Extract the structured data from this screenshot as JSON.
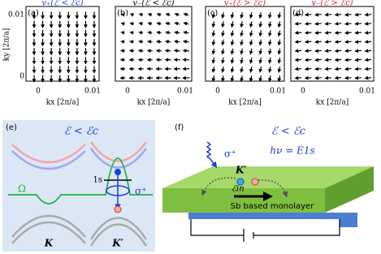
{
  "panels_top": [
    {
      "label": "(a)",
      "title": "v₊(ℰ < ℰc)",
      "xlabel": "kx [2π/a]",
      "xticks": [
        "0",
        "0.01"
      ]
    },
    {
      "label": "(b)",
      "title": "v₋(ℰ < ℰc)",
      "xlabel": "kx [2π/a]",
      "xticks": [
        "0",
        "0.01"
      ]
    },
    {
      "label": "(c)",
      "title": "v₊(ℰ > ℰc)",
      "xlabel": "kx [2π/a]",
      "xticks": [
        "0",
        "0.01"
      ]
    },
    {
      "label": "(d)",
      "title": "v₋(ℰ > ℰc)",
      "xlabel": "kx [2π/a]",
      "xticks": [
        "0",
        "0.01"
      ]
    }
  ],
  "ylabel": "ky [2π/a]",
  "yticks": [
    "0.01",
    "0"
  ],
  "panel_e": {
    "label": "(e)",
    "condition": "ℰ < ℰc",
    "state": "1s",
    "polarization": "σ⁺",
    "berry": "Ω",
    "valley_k": "K",
    "valley_kp": "K′"
  },
  "panel_f": {
    "label": "(f)",
    "condition": "ℰ < ℰc",
    "polarization": "σ⁺",
    "photon": "hν = E1s",
    "valley": "K′",
    "field": "ℰin",
    "material": "Sb based monolayer"
  }
}
